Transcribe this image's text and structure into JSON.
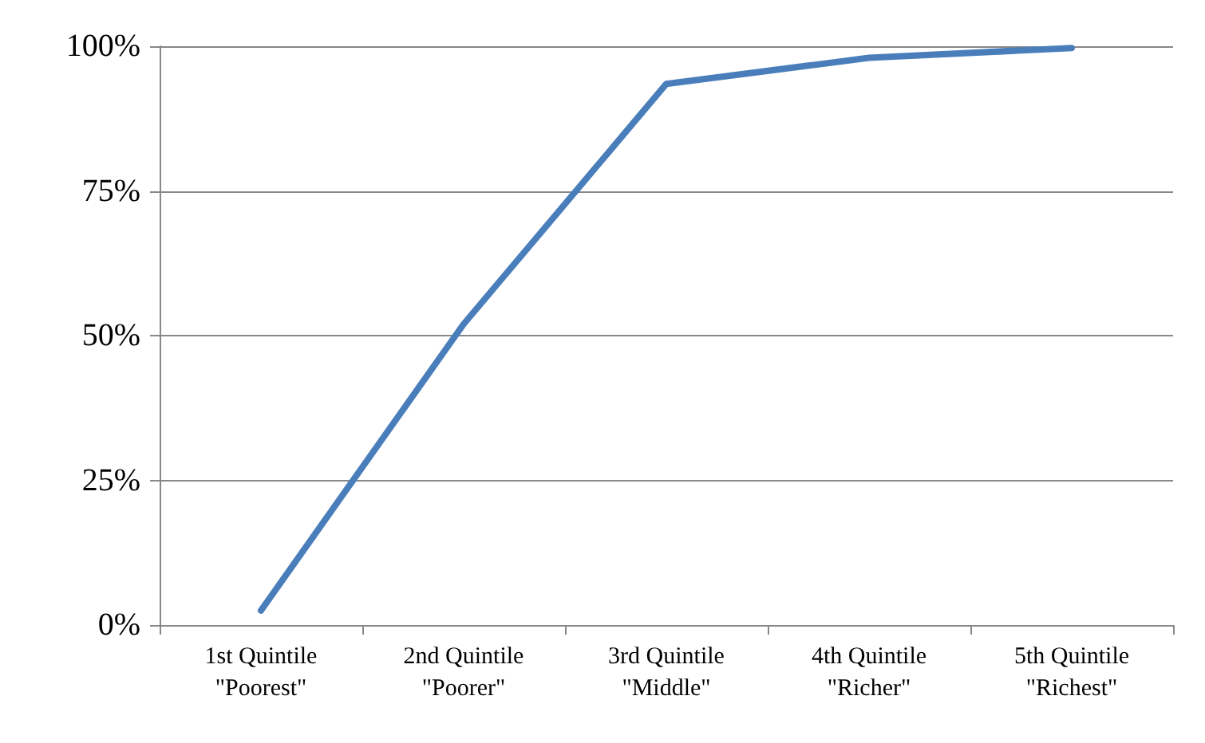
{
  "chart_data": {
    "type": "line",
    "categories": [
      "1st Quintile\n\"Poorest\"",
      "2nd Quintile\n\"Poorer\"",
      "3rd Quintile\n\"Middle\"",
      "4th Quintile\n\"Richer\"",
      "5th Quintile\n\"Richest\""
    ],
    "series": [
      {
        "color": "#4a7ebb",
        "values": [
          2.5,
          52,
          93.5,
          98,
          99.7
        ]
      }
    ],
    "ylim": [
      0,
      100
    ],
    "yticks": [
      {
        "value": 0,
        "label": "0%"
      },
      {
        "value": 25,
        "label": "25%"
      },
      {
        "value": 50,
        "label": "50%"
      },
      {
        "value": 75,
        "label": "75%"
      },
      {
        "value": 100,
        "label": "100%"
      }
    ],
    "grid": "y",
    "marker": "none",
    "line_style": "solid"
  }
}
